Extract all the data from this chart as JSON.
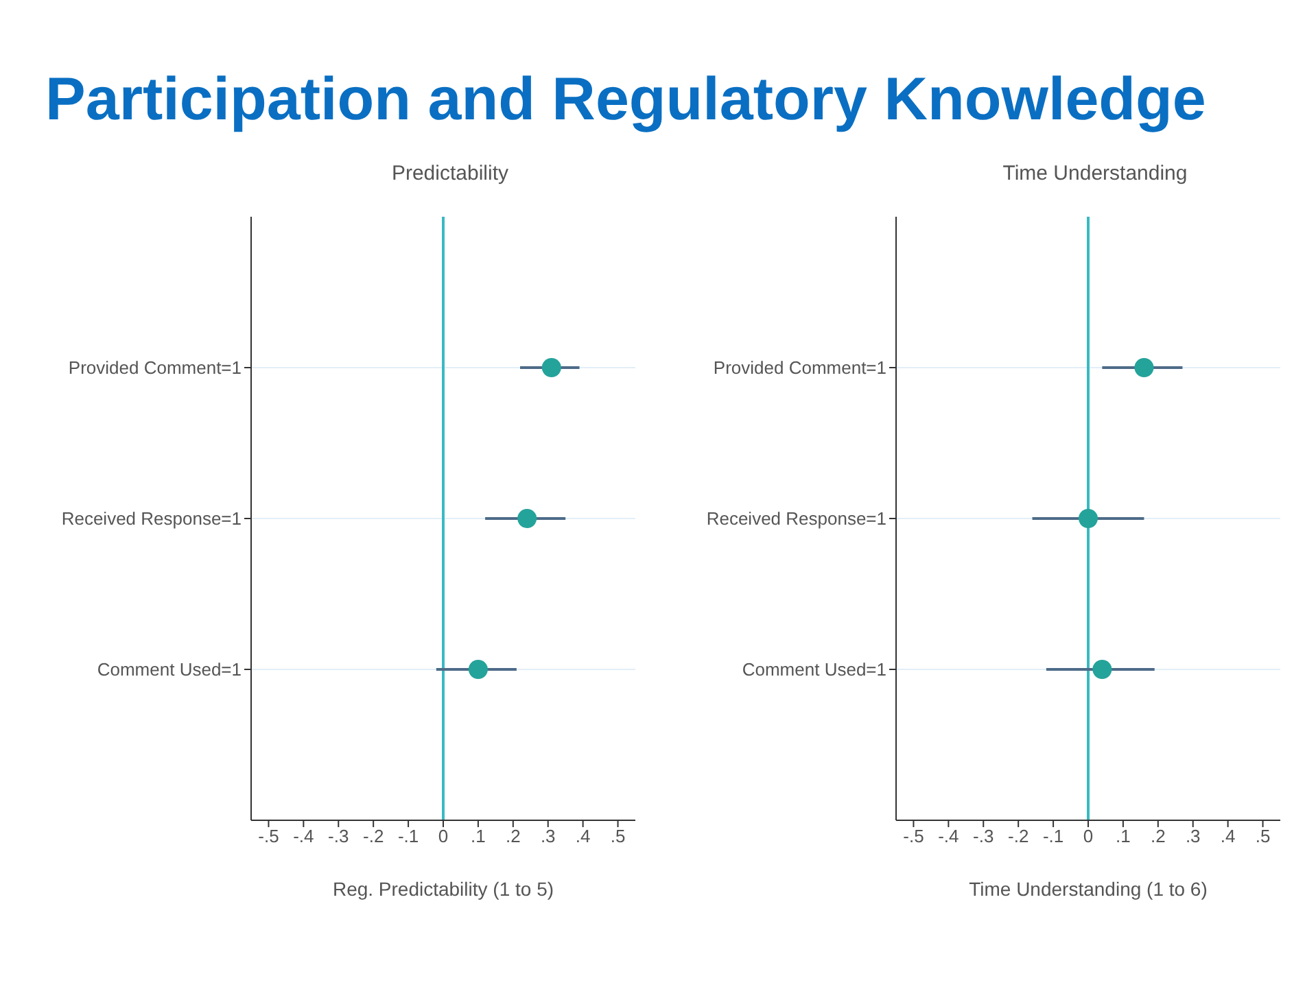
{
  "chart_data": [
    {
      "type": "scatter",
      "title": "Participation and Regulatory Knowledge",
      "subtitle": "Predictability",
      "xlabel": "Reg. Predictability (1 to 5)",
      "orientation": "horizontal",
      "categories": [
        "Provided Comment=1",
        "Received Response=1",
        "Comment Used=1"
      ],
      "values": [
        0.31,
        0.24,
        0.1
      ],
      "errors": [
        [
          0.22,
          0.39
        ],
        [
          0.12,
          0.35
        ],
        [
          -0.02,
          0.21
        ]
      ],
      "color": "#24a39b",
      "xlim": [
        -0.55,
        0.55
      ],
      "xticks": [
        {
          "value": -0.5,
          "label": "-.5"
        },
        {
          "value": -0.4,
          "label": "-.4"
        },
        {
          "value": -0.3,
          "label": "-.3"
        },
        {
          "value": -0.2,
          "label": "-.2"
        },
        {
          "value": -0.1,
          "label": "-.1"
        },
        0,
        {
          "value": 0.1,
          "label": ".1"
        },
        {
          "value": 0.2,
          "label": ".2"
        },
        {
          "value": 0.3,
          "label": ".3"
        },
        {
          "value": 0.4,
          "label": ".4"
        },
        {
          "value": 0.5,
          "label": ".5"
        }
      ],
      "ref_lines": [
        {
          "axis": "x",
          "value": 0,
          "color": "#3bb9c2"
        }
      ],
      "grid": "y",
      "marker": "circle"
    },
    {
      "type": "scatter",
      "subtitle": "Time Understanding",
      "xlabel": "Time Understanding (1 to 6)",
      "orientation": "horizontal",
      "categories": [
        "Provided Comment=1",
        "Received Response=1",
        "Comment Used=1"
      ],
      "values": [
        0.16,
        0.0,
        0.04
      ],
      "errors": [
        [
          0.04,
          0.27
        ],
        [
          -0.16,
          0.16
        ],
        [
          -0.12,
          0.19
        ]
      ],
      "color": "#24a39b",
      "xlim": [
        -0.55,
        0.55
      ],
      "xticks": [
        {
          "value": -0.5,
          "label": "-.5"
        },
        {
          "value": -0.4,
          "label": "-.4"
        },
        {
          "value": -0.3,
          "label": "-.3"
        },
        {
          "value": -0.2,
          "label": "-.2"
        },
        {
          "value": -0.1,
          "label": "-.1"
        },
        0,
        {
          "value": 0.1,
          "label": ".1"
        },
        {
          "value": 0.2,
          "label": ".2"
        },
        {
          "value": 0.3,
          "label": ".3"
        },
        {
          "value": 0.4,
          "label": ".4"
        },
        {
          "value": 0.5,
          "label": ".5"
        }
      ],
      "ref_lines": [
        {
          "axis": "x",
          "value": 0,
          "color": "#3bb9c2"
        }
      ],
      "grid": "y",
      "marker": "circle"
    }
  ]
}
